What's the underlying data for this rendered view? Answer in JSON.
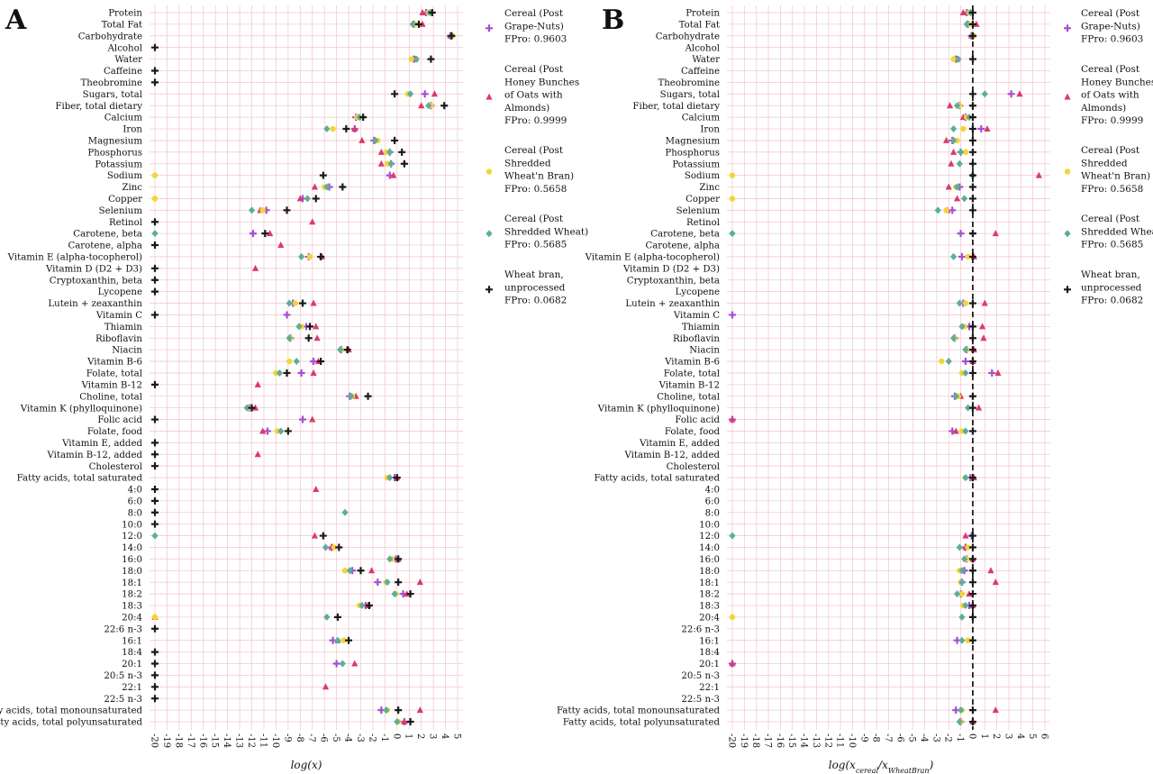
{
  "chart_data": [
    {
      "panel": "A",
      "type": "scatter",
      "xlabel": "log(x)",
      "xlim": [
        -20,
        5
      ],
      "xticks": [
        -20,
        -19,
        -18,
        -17,
        -16,
        -15,
        -14,
        -13,
        -12,
        -11,
        -10,
        -9,
        -8,
        -7,
        -6,
        -5,
        -4,
        -3,
        -2,
        -1,
        0,
        1,
        2,
        3,
        4,
        5
      ],
      "categories": [
        "Protein",
        "Total Fat",
        "Carbohydrate",
        "Alcohol",
        "Water",
        "Caffeine",
        "Theobromine",
        "Sugars, total",
        "Fiber, total dietary",
        "Calcium",
        "Iron",
        "Magnesium",
        "Phosphorus",
        "Potassium",
        "Sodium",
        "Zinc",
        "Copper",
        "Selenium",
        "Retinol",
        "Carotene, beta",
        "Carotene, alpha",
        "Vitamin E (alpha-tocopherol)",
        "Vitamin D (D2 + D3)",
        "Cryptoxanthin, beta",
        "Lycopene",
        "Lutein + zeaxanthin",
        "Vitamin C",
        "Thiamin",
        "Riboflavin",
        "Niacin",
        "Vitamin B-6",
        "Folate, total",
        "Vitamin B-12",
        "Choline, total",
        "Vitamin K (phylloquinone)",
        "Folic acid",
        "Folate, food",
        "Vitamin E, added",
        "Vitamin B-12, added",
        "Cholesterol",
        "Fatty acids, total saturated",
        "4:0",
        "6:0",
        "8:0",
        "10:0",
        "12:0",
        "14:0",
        "16:0",
        "18:0",
        "18:1",
        "18:2",
        "18:3",
        "20:4",
        "22:6 n-3",
        "16:1",
        "18:4",
        "20:1",
        "20:5 n-3",
        "22:1",
        "22:5 n-3",
        "Fatty acids, total monounsaturated",
        "Fatty acids, total polyunsaturated"
      ],
      "series": [
        {
          "name": "Cereal (Post Grape-Nuts)",
          "values": [
            2.4,
            1.4,
            4.4,
            null,
            1.4,
            null,
            null,
            2.3,
            2.8,
            -3.4,
            -3.5,
            -1.9,
            -0.6,
            -0.5,
            -0.6,
            -5.6,
            -7.8,
            -10.8,
            null,
            -11.9,
            null,
            -7.3,
            null,
            null,
            null,
            -8.6,
            -9.1,
            -7.5,
            -8.8,
            -4.6,
            -6.9,
            -7.9,
            null,
            -3.9,
            -12.2,
            -7.8,
            -10.7,
            null,
            null,
            null,
            -0.2,
            null,
            null,
            null,
            null,
            null,
            -5.4,
            -0.1,
            -3.7,
            -1.6,
            0.5,
            -2.6,
            null,
            null,
            -5.3,
            null,
            -5.0,
            null,
            null,
            null,
            -1.3,
            0.6
          ]
        },
        {
          "name": "Cereal (Post Honey Bunches of Oats with Almonds)",
          "values": [
            2.1,
            2.1,
            4.4,
            null,
            1.5,
            null,
            null,
            3.1,
            2.0,
            -3.2,
            -3.5,
            -2.9,
            -1.3,
            -1.3,
            -0.3,
            -6.8,
            -8.0,
            -11.3,
            -7.0,
            -10.5,
            -9.6,
            -6.2,
            -11.7,
            null,
            null,
            -6.9,
            null,
            -6.7,
            -6.6,
            -4.0,
            -6.5,
            -6.9,
            -11.5,
            -3.4,
            -11.7,
            -7.0,
            -11.1,
            null,
            -11.5,
            null,
            0.0,
            -6.7,
            null,
            null,
            null,
            -6.8,
            -5.4,
            0.1,
            -2.1,
            1.9,
            0.8,
            -2.4,
            -20,
            null,
            -4.9,
            null,
            -3.5,
            null,
            -5.9,
            null,
            1.9,
            0.6
          ]
        },
        {
          "name": "Cereal (Post Shredded Wheat'n Bran)",
          "values": [
            2.6,
            1.5,
            4.6,
            null,
            1.2,
            null,
            null,
            0.9,
            2.8,
            -3.3,
            -5.3,
            -1.6,
            -0.9,
            -0.8,
            -20,
            -6.0,
            -20,
            -11.1,
            null,
            null,
            null,
            -7.2,
            null,
            null,
            null,
            -8.4,
            null,
            -7.9,
            -8.8,
            -4.6,
            -8.9,
            -10.0,
            null,
            -3.7,
            -12.3,
            null,
            -9.9,
            null,
            null,
            null,
            -0.8,
            null,
            null,
            null,
            null,
            null,
            -5.2,
            -0.4,
            -4.3,
            -0.9,
            -0.1,
            -3.1,
            -20,
            null,
            -4.4,
            null,
            null,
            null,
            null,
            null,
            -0.8,
            0.1
          ]
        },
        {
          "name": "Cereal (Post Shredded Wheat)",
          "values": [
            2.7,
            1.3,
            4.5,
            null,
            1.6,
            null,
            null,
            1.1,
            2.6,
            -3.1,
            -5.8,
            -1.8,
            -0.6,
            -0.5,
            null,
            -5.8,
            -7.4,
            -12.0,
            null,
            -20,
            null,
            -7.9,
            null,
            null,
            null,
            -8.9,
            null,
            -8.1,
            -8.9,
            -4.7,
            -8.3,
            -9.7,
            null,
            -3.8,
            -12.4,
            null,
            -9.6,
            null,
            null,
            null,
            -0.6,
            null,
            null,
            -4.3,
            null,
            -20,
            -5.9,
            -0.6,
            -3.9,
            -0.8,
            -0.2,
            -2.9,
            -5.8,
            null,
            -4.9,
            null,
            -4.5,
            null,
            null,
            null,
            -0.9,
            0.0
          ]
        },
        {
          "name": "Wheat bran, unprocessed",
          "values": [
            2.9,
            1.8,
            4.5,
            -20,
            2.8,
            -20,
            -20,
            -0.2,
            3.9,
            -2.8,
            -4.2,
            -0.2,
            0.4,
            0.6,
            -6.1,
            -4.5,
            -6.7,
            -9.1,
            -20,
            -10.9,
            -20,
            -6.3,
            -20,
            -20,
            -20,
            -7.8,
            -20,
            -7.2,
            -7.3,
            -4.1,
            -6.3,
            -9.1,
            -20,
            -2.4,
            -12.0,
            -20,
            -9.0,
            -20,
            -20,
            -20,
            0.0,
            -20,
            -20,
            -20,
            -20,
            -6.1,
            -4.8,
            0.1,
            -3.0,
            0.1,
            1.1,
            -2.3,
            -4.9,
            -20,
            -4.0,
            -20,
            -20,
            -20,
            -20,
            -20,
            0.1,
            1.1
          ]
        }
      ]
    },
    {
      "panel": "B",
      "type": "scatter",
      "xlabel": "log(x_cereal / x_WheatBran)",
      "xlim": [
        -20,
        6
      ],
      "xticks": [
        -20,
        -19,
        -18,
        -17,
        -16,
        -15,
        -14,
        -13,
        -12,
        -11,
        -10,
        -9,
        -8,
        -7,
        -6,
        -5,
        -4,
        -3,
        -2,
        -1,
        0,
        1,
        2,
        3,
        4,
        5,
        6
      ],
      "reference_line": 0,
      "categories": [
        "Protein",
        "Total Fat",
        "Carbohydrate",
        "Alcohol",
        "Water",
        "Caffeine",
        "Theobromine",
        "Sugars, total",
        "Fiber, total dietary",
        "Calcium",
        "Iron",
        "Magnesium",
        "Phosphorus",
        "Potassium",
        "Sodium",
        "Zinc",
        "Copper",
        "Selenium",
        "Retinol",
        "Carotene, beta",
        "Carotene, alpha",
        "Vitamin E (alpha-tocopherol)",
        "Vitamin D (D2 + D3)",
        "Cryptoxanthin, beta",
        "Lycopene",
        "Lutein + zeaxanthin",
        "Vitamin C",
        "Thiamin",
        "Riboflavin",
        "Niacin",
        "Vitamin B-6",
        "Folate, total",
        "Vitamin B-12",
        "Choline, total",
        "Vitamin K (phylloquinone)",
        "Folic acid",
        "Folate, food",
        "Vitamin E, added",
        "Vitamin B-12, added",
        "Cholesterol",
        "Fatty acids, total saturated",
        "4:0",
        "6:0",
        "8:0",
        "10:0",
        "12:0",
        "14:0",
        "16:0",
        "18:0",
        "18:1",
        "18:2",
        "18:3",
        "20:4",
        "22:6 n-3",
        "16:1",
        "18:4",
        "20:1",
        "20:5 n-3",
        "22:1",
        "22:5 n-3",
        "Fatty acids, total monounsaturated",
        "Fatty acids, total polyunsaturated"
      ],
      "series": [
        {
          "name": "Cereal (Post Grape-Nuts)",
          "values": [
            -0.5,
            -0.4,
            -0.1,
            null,
            -1.4,
            null,
            null,
            3.2,
            -1.1,
            -0.6,
            0.7,
            -1.7,
            -1.0,
            null,
            null,
            -1.1,
            null,
            -1.7,
            null,
            -1.0,
            null,
            -0.9,
            null,
            null,
            null,
            -0.8,
            -20,
            -0.3,
            -1.5,
            -0.5,
            -0.6,
            1.6,
            null,
            -1.5,
            null,
            -20,
            -1.7,
            null,
            null,
            null,
            -0.2,
            null,
            null,
            null,
            null,
            -0.1,
            -0.6,
            -0.5,
            -0.7,
            -0.9,
            -1.0,
            -0.3,
            null,
            null,
            -1.3,
            null,
            -20,
            null,
            null,
            null,
            -1.4,
            -1.0
          ]
        },
        {
          "name": "Cereal (Post Honey Bunches of Oats with Almonds)",
          "values": [
            -0.8,
            0.3,
            -0.1,
            null,
            -1.3,
            null,
            null,
            3.9,
            -1.9,
            -0.8,
            1.2,
            -2.2,
            -1.6,
            -1.8,
            5.5,
            -2.0,
            -1.3,
            -2.1,
            null,
            1.9,
            null,
            0.1,
            null,
            null,
            null,
            1.0,
            null,
            0.8,
            0.9,
            0.1,
            0.0,
            2.1,
            null,
            -1.0,
            0.5,
            -20,
            -1.4,
            null,
            null,
            null,
            0.1,
            null,
            null,
            null,
            null,
            -0.6,
            -0.6,
            0.0,
            1.5,
            1.9,
            -0.3,
            0.0,
            null,
            null,
            null,
            null,
            -20,
            null,
            null,
            null,
            1.9,
            0.0
          ]
        },
        {
          "name": "Cereal (Post Shredded Wheat'n Bran)",
          "values": [
            -0.3,
            -0.3,
            0.1,
            null,
            -1.6,
            null,
            null,
            null,
            -1.1,
            -0.5,
            -0.8,
            -1.3,
            -0.6,
            null,
            -20,
            -1.4,
            -20,
            -2.2,
            null,
            null,
            null,
            -0.4,
            null,
            null,
            null,
            -0.6,
            null,
            -0.7,
            -1.5,
            -0.5,
            -2.6,
            -0.9,
            null,
            -1.2,
            null,
            null,
            -0.9,
            null,
            null,
            null,
            -0.6,
            null,
            null,
            null,
            null,
            null,
            -0.4,
            -0.5,
            -1.1,
            -1.0,
            -0.9,
            -0.8,
            -20,
            null,
            -0.4,
            null,
            null,
            null,
            null,
            null,
            -0.9,
            -1.0
          ]
        },
        {
          "name": "Cereal (Post Shredded Wheat)",
          "values": [
            -0.2,
            -0.5,
            0.0,
            null,
            -1.2,
            null,
            null,
            1.0,
            -1.3,
            -0.3,
            -1.6,
            -1.6,
            -1.0,
            -1.1,
            0.0,
            -1.3,
            -0.7,
            -2.9,
            null,
            -20,
            null,
            -1.6,
            null,
            null,
            null,
            -1.1,
            null,
            -0.9,
            -1.6,
            -0.6,
            -2.0,
            -0.6,
            null,
            -1.4,
            -0.4,
            null,
            -0.6,
            null,
            null,
            null,
            -0.6,
            null,
            null,
            null,
            null,
            -20,
            -1.1,
            -0.7,
            -0.9,
            -0.9,
            -1.3,
            -0.6,
            -0.9,
            null,
            -0.9,
            null,
            null,
            null,
            null,
            null,
            -1.0,
            -1.1
          ]
        },
        {
          "name": "Wheat bran, unprocessed",
          "values": [
            0.0,
            0.0,
            0.0,
            null,
            0.0,
            null,
            null,
            0.0,
            0.0,
            0.0,
            0.0,
            0.0,
            0.0,
            0.0,
            0.0,
            0.0,
            0.0,
            0.0,
            null,
            0.0,
            null,
            0.0,
            null,
            null,
            null,
            0.0,
            null,
            0.0,
            0.0,
            0.0,
            0.0,
            0.0,
            null,
            0.0,
            0.0,
            null,
            0.0,
            null,
            null,
            null,
            0.0,
            null,
            null,
            null,
            null,
            0.0,
            0.0,
            0.0,
            0.0,
            0.0,
            0.0,
            0.0,
            0.0,
            null,
            0.0,
            null,
            null,
            null,
            null,
            null,
            0.0,
            0.0
          ]
        }
      ]
    }
  ],
  "panels": {
    "a": {
      "letter": "A",
      "xlabel_text": "log(x)"
    },
    "b": {
      "letter": "B",
      "xlabel_main": "log(x",
      "xlabel_sub1": "cereal",
      "xlabel_mid": "/x",
      "xlabel_sub2": "WheatBran",
      "xlabel_end": ")"
    }
  },
  "legend": [
    {
      "lines": [
        "Cereal (Post",
        "Grape-Nuts)",
        "FPro: 0.9603"
      ],
      "marker": "plus",
      "color": "#a64fd0"
    },
    {
      "lines": [
        "Cereal (Post",
        "Honey Bunches",
        "of Oats with",
        "Almonds)",
        "FPro: 0.9999"
      ],
      "marker": "triangle",
      "color": "#dc3a6c"
    },
    {
      "lines": [
        "Cereal (Post",
        "Shredded",
        "Wheat'n Bran)",
        "FPro: 0.5658"
      ],
      "marker": "circle",
      "color": "#f5d533"
    },
    {
      "lines": [
        "Cereal (Post",
        "Shredded Wheat)",
        "FPro: 0.5685"
      ],
      "marker": "diamond",
      "color": "#5aae9c"
    },
    {
      "lines": [
        "Wheat bran,",
        "unprocessed",
        "FPro: 0.0682"
      ],
      "marker": "plus",
      "color": "#1a1a1a"
    }
  ],
  "colors": {
    "grape_nuts": "#a64fd0",
    "honey_bunches": "#dc3a6c",
    "wheat_n_bran": "#f5d533",
    "shredded_wheat": "#5aae9c",
    "wheat_bran": "#1a1a1a",
    "grid": "#f2c9d4",
    "reference_line": "#000000"
  }
}
